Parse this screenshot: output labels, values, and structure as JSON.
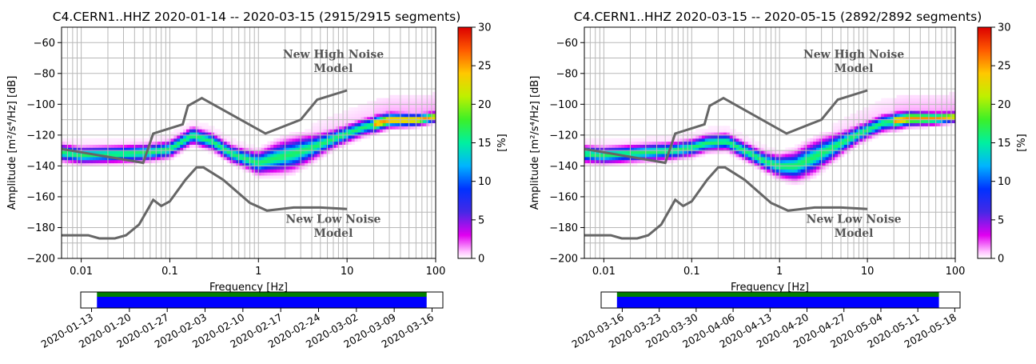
{
  "chart_data": [
    {
      "type": "heatmap",
      "title": "C4.CERN1..HHZ   2020-01-14 -- 2020-03-15  (2915/2915 segments)",
      "xlabel": "Frequency [Hz]",
      "ylabel": "Amplitude [m²/s⁴/Hz] [dB]",
      "x_scale": "log",
      "xlim": [
        0.006,
        100
      ],
      "ylim": [
        -200,
        -50
      ],
      "x_ticks": [
        "0.01",
        "0.1",
        "1",
        "10",
        "100"
      ],
      "y_ticks": [
        "−60",
        "−80",
        "−100",
        "−120",
        "−140",
        "−160",
        "−180",
        "−200"
      ],
      "colorbar_label": "[%]",
      "colorbar_range": [
        0,
        30
      ],
      "colorbar_ticks": [
        "0",
        "5",
        "10",
        "15",
        "20",
        "25",
        "30"
      ],
      "grid": true,
      "annotations": {
        "nhnm_line1": "New High Noise",
        "nhnm_line2": "Model",
        "nlnm_line1": "New Low Noise",
        "nlnm_line2": "Model"
      },
      "noise_models": {
        "nhnm": {
          "x": [
            0.006,
            0.05,
            0.065,
            0.14,
            0.16,
            0.23,
            1.2,
            3,
            4.6,
            10
          ],
          "y": [
            -129,
            -138,
            -119,
            -113,
            -101,
            -96,
            -119,
            -110,
            -97,
            -91
          ]
        },
        "nlnm": {
          "x": [
            0.006,
            0.012,
            0.016,
            0.024,
            0.032,
            0.045,
            0.065,
            0.08,
            0.1,
            0.15,
            0.2,
            0.24,
            0.4,
            0.8,
            1.25,
            2.5,
            5,
            10
          ],
          "y": [
            -185,
            -185,
            -187,
            -187,
            -185,
            -178,
            -162,
            -166,
            -163,
            -149,
            -141,
            -141,
            -149,
            -164,
            -169,
            -167,
            -167,
            -168
          ]
        }
      },
      "median_psd": {
        "x": [
          0.006,
          0.01,
          0.03,
          0.06,
          0.1,
          0.18,
          0.3,
          0.5,
          1,
          1.5,
          2.5,
          4,
          8,
          15,
          30,
          60,
          100
        ],
        "y": [
          -131,
          -133,
          -132,
          -131,
          -129,
          -120,
          -124,
          -132,
          -138,
          -135,
          -132,
          -128,
          -121,
          -115,
          -110,
          -110,
          -108
        ]
      },
      "time_coverage": {
        "ticks": [
          "2020-01-13",
          "2020-01-20",
          "2020-01-27",
          "2020-02-03",
          "2020-02-10",
          "2020-02-17",
          "2020-02-24",
          "2020-03-02",
          "2020-03-09",
          "2020-03-16"
        ],
        "range": [
          "2020-01-11",
          "2020-03-18"
        ],
        "covered": [
          "2020-01-14",
          "2020-03-15"
        ],
        "colors": [
          "#008000",
          "#0000ff"
        ]
      }
    },
    {
      "type": "heatmap",
      "title": "C4.CERN1..HHZ   2020-03-15 -- 2020-05-15  (2892/2892 segments)",
      "xlabel": "Frequency [Hz]",
      "ylabel": "Amplitude [m²/s⁴/Hz] [dB]",
      "x_scale": "log",
      "xlim": [
        0.006,
        100
      ],
      "ylim": [
        -200,
        -50
      ],
      "x_ticks": [
        "0.01",
        "0.1",
        "1",
        "10",
        "100"
      ],
      "y_ticks": [
        "−60",
        "−80",
        "−100",
        "−120",
        "−140",
        "−160",
        "−180",
        "−200"
      ],
      "colorbar_label": "[%]",
      "colorbar_range": [
        0,
        30
      ],
      "colorbar_ticks": [
        "0",
        "5",
        "10",
        "15",
        "20",
        "25",
        "30"
      ],
      "grid": true,
      "annotations": {
        "nhnm_line1": "New High Noise",
        "nhnm_line2": "Model",
        "nlnm_line1": "New Low Noise",
        "nlnm_line2": "Model"
      },
      "noise_models": {
        "nhnm": {
          "x": [
            0.006,
            0.05,
            0.065,
            0.14,
            0.16,
            0.23,
            1.2,
            3,
            4.6,
            10
          ],
          "y": [
            -129,
            -138,
            -119,
            -113,
            -101,
            -96,
            -119,
            -110,
            -97,
            -91
          ]
        },
        "nlnm": {
          "x": [
            0.006,
            0.012,
            0.016,
            0.024,
            0.032,
            0.045,
            0.065,
            0.08,
            0.1,
            0.15,
            0.2,
            0.24,
            0.4,
            0.8,
            1.25,
            2.5,
            5,
            10
          ],
          "y": [
            -185,
            -185,
            -187,
            -187,
            -185,
            -178,
            -162,
            -166,
            -163,
            -149,
            -141,
            -141,
            -149,
            -164,
            -169,
            -167,
            -167,
            -168
          ]
        }
      },
      "median_psd": {
        "x": [
          0.006,
          0.01,
          0.03,
          0.06,
          0.1,
          0.15,
          0.25,
          0.4,
          0.7,
          1,
          1.5,
          2.5,
          4,
          8,
          15,
          30,
          60,
          100
        ],
        "y": [
          -132,
          -133,
          -131,
          -130,
          -128,
          -125,
          -124,
          -130,
          -137,
          -140,
          -140,
          -134,
          -128,
          -119,
          -112,
          -109,
          -109,
          -108
        ]
      },
      "time_coverage": {
        "ticks": [
          "2020-03-16",
          "2020-03-23",
          "2020-03-30",
          "2020-04-06",
          "2020-04-13",
          "2020-04-20",
          "2020-04-27",
          "2020-05-04",
          "2020-05-11",
          "2020-05-18"
        ],
        "range": [
          "2020-03-12",
          "2020-05-19"
        ],
        "covered": [
          "2020-03-15",
          "2020-05-15"
        ],
        "colors": [
          "#008000",
          "#0000ff"
        ]
      }
    }
  ]
}
